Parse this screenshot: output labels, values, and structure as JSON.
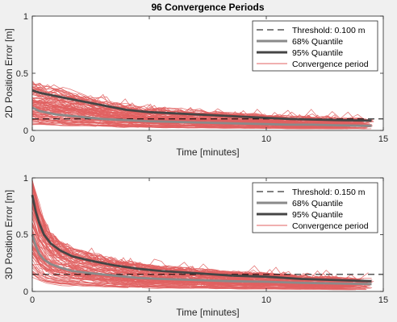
{
  "figure_title": "96 Convergence Periods",
  "colors": {
    "convergence": "#e06060",
    "q68": "#8a8a8a",
    "q95": "#454545",
    "threshold": "#000000",
    "axes_bg": "#ffffff",
    "figure_bg": "#f0f0f0"
  },
  "legend": {
    "q68": "68% Quantile",
    "q95": "95% Quantile",
    "convergence": "Convergence period"
  },
  "chart_data": [
    {
      "type": "line",
      "title": "96 Convergence Periods",
      "xlabel": "Time [minutes]",
      "ylabel": "2D Position Error [m]",
      "xlim": [
        0,
        15
      ],
      "ylim": [
        0,
        1
      ],
      "xticks": [
        "0",
        "5",
        "10",
        "15"
      ],
      "yticks": [
        "0",
        "0.5",
        "1"
      ],
      "grid": false,
      "legend_position": "top-right",
      "period_count": 96,
      "threshold": {
        "label": "Threshold: 0.100 m",
        "value": 0.1
      },
      "series": [
        {
          "name": "95% Quantile",
          "x": [
            0,
            0.3,
            1,
            2,
            3,
            4,
            5,
            6,
            7,
            8,
            9,
            10,
            11,
            12,
            13,
            14.5
          ],
          "y": [
            0.35,
            0.33,
            0.3,
            0.26,
            0.22,
            0.18,
            0.16,
            0.15,
            0.14,
            0.13,
            0.12,
            0.11,
            0.1,
            0.095,
            0.09,
            0.085
          ]
        },
        {
          "name": "68% Quantile",
          "x": [
            0,
            0.3,
            1,
            2,
            3,
            4,
            5,
            6,
            7,
            8,
            9,
            10,
            11,
            12,
            13,
            14.5
          ],
          "y": [
            0.2,
            0.17,
            0.14,
            0.12,
            0.1,
            0.09,
            0.08,
            0.075,
            0.07,
            0.065,
            0.06,
            0.055,
            0.05,
            0.05,
            0.045,
            0.04
          ]
        }
      ]
    },
    {
      "type": "line",
      "title": "",
      "xlabel": "Time [minutes]",
      "ylabel": "3D Position Error [m]",
      "xlim": [
        0,
        15
      ],
      "ylim": [
        0,
        1
      ],
      "xticks": [
        "0",
        "5",
        "10",
        "15"
      ],
      "yticks": [
        "0",
        "0.5",
        "1"
      ],
      "grid": false,
      "legend_position": "top-right",
      "period_count": 96,
      "threshold": {
        "label": "Threshold: 0.150 m",
        "value": 0.15
      },
      "series": [
        {
          "name": "95% Quantile",
          "x": [
            0,
            0.15,
            0.3,
            0.5,
            0.8,
            1.2,
            1.7,
            2.5,
            3.5,
            4.5,
            5.5,
            7,
            8.5,
            10,
            11.5,
            13,
            14.5
          ],
          "y": [
            0.85,
            0.7,
            0.6,
            0.5,
            0.42,
            0.36,
            0.31,
            0.27,
            0.23,
            0.2,
            0.18,
            0.16,
            0.14,
            0.13,
            0.11,
            0.1,
            0.09
          ]
        },
        {
          "name": "68% Quantile",
          "x": [
            0,
            0.15,
            0.3,
            0.5,
            0.8,
            1.2,
            1.7,
            2.5,
            3.5,
            4.5,
            5.5,
            7,
            8.5,
            10,
            11.5,
            13,
            14.5
          ],
          "y": [
            0.5,
            0.4,
            0.33,
            0.28,
            0.24,
            0.21,
            0.18,
            0.16,
            0.14,
            0.12,
            0.11,
            0.1,
            0.09,
            0.085,
            0.075,
            0.07,
            0.065
          ]
        }
      ]
    }
  ]
}
